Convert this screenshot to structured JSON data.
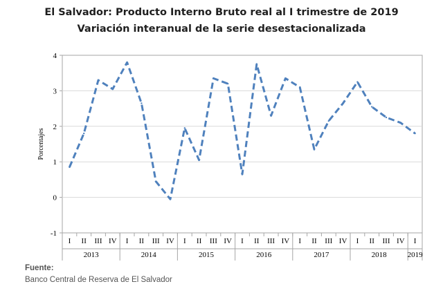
{
  "title": "El Salvador: Producto Interno Bruto real al I trimestre de 2019",
  "subtitle": "Variación interanual de la serie desestacionalizada",
  "source": {
    "label": "Fuente:",
    "text": "Banco Central de Reserva de El Salvador"
  },
  "colors": {
    "line": "#4f81bd",
    "grid": "#d9d9d9",
    "axis": "#a6a6a6"
  },
  "chart_data": {
    "type": "line",
    "ylabel": "Porcentajes",
    "ylim": [
      -1,
      4
    ],
    "yticks": [
      "-1",
      "0",
      "1",
      "2",
      "3",
      "4"
    ],
    "grid": true,
    "line_style": "dashed",
    "categories": [
      "I",
      "II",
      "III",
      "IV",
      "I",
      "II",
      "III",
      "IV",
      "I",
      "II",
      "III",
      "IV",
      "I",
      "II",
      "III",
      "IV",
      "I",
      "II",
      "III",
      "IV",
      "I",
      "II",
      "III",
      "IV",
      "I"
    ],
    "years": [
      {
        "label": "2013",
        "quarters": 4
      },
      {
        "label": "2014",
        "quarters": 4
      },
      {
        "label": "2015",
        "quarters": 4
      },
      {
        "label": "2016",
        "quarters": 4
      },
      {
        "label": "2017",
        "quarters": 4
      },
      {
        "label": "2018",
        "quarters": 4
      },
      {
        "label": "2019",
        "quarters": 1
      }
    ],
    "series": [
      {
        "values": [
          0.85,
          1.8,
          3.3,
          3.05,
          3.8,
          2.65,
          0.45,
          -0.05,
          1.95,
          1.05,
          3.35,
          3.2,
          0.65,
          3.75,
          2.3,
          3.35,
          3.1,
          1.35,
          2.15,
          2.65,
          3.25,
          2.55,
          2.25,
          2.1,
          1.8
        ]
      }
    ]
  }
}
